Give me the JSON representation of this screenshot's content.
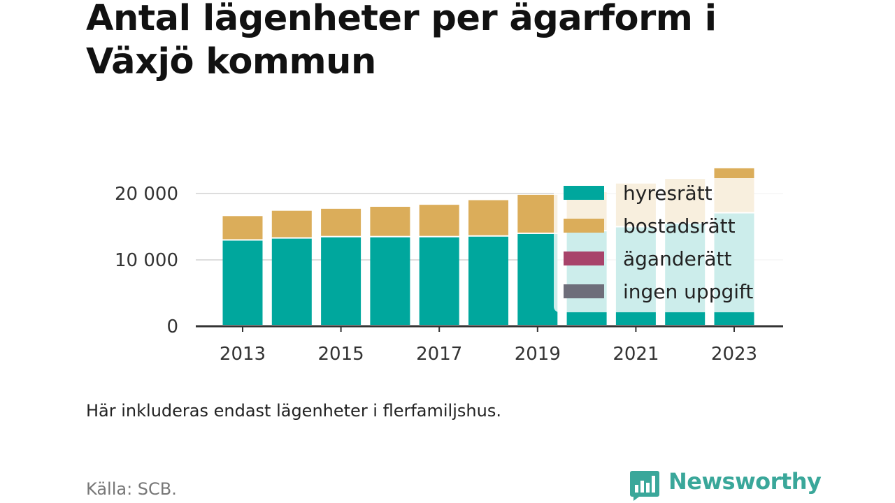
{
  "title": "Antal lägenheter per ägarform i Växjö kommun",
  "note": "Här inkluderas endast lägenheter i flerfamiljshus.",
  "source": "Källa: SCB.",
  "brand": {
    "name": "Newsworthy",
    "color": "#3aa79a",
    "icon": "newsworthy-bar-chart-icon"
  },
  "chart_data": {
    "type": "bar",
    "stacked": true,
    "categories": [
      "2013",
      "2014",
      "2015",
      "2016",
      "2017",
      "2018",
      "2019",
      "2020",
      "2021",
      "2022",
      "2023"
    ],
    "x_tick_labels": [
      "2013",
      "2015",
      "2017",
      "2019",
      "2021",
      "2023"
    ],
    "y_tick_labels": [
      "0",
      "10 000",
      "20 000"
    ],
    "y_ticks": [
      0,
      10000,
      20000
    ],
    "ylim": [
      0,
      24500
    ],
    "grid": true,
    "legend_position": "top-right",
    "series": [
      {
        "name": "hyresrätt",
        "color": "#00a79d",
        "values": [
          12900,
          13200,
          13400,
          13400,
          13400,
          13500,
          13900,
          14300,
          14900,
          15400,
          17000
        ]
      },
      {
        "name": "bostadsrätt",
        "color": "#dbad5a",
        "values": [
          3700,
          4200,
          4300,
          4600,
          4900,
          5500,
          5900,
          5900,
          6600,
          6800,
          6800
        ]
      },
      {
        "name": "äganderätt",
        "color": "#a8436a",
        "values": [
          0,
          0,
          0,
          0,
          0,
          0,
          0,
          0,
          0,
          0,
          0
        ]
      },
      {
        "name": "ingen uppgift",
        "color": "#6e6e7a",
        "values": [
          0,
          0,
          0,
          0,
          0,
          0,
          0,
          0,
          0,
          0,
          0
        ]
      }
    ]
  }
}
